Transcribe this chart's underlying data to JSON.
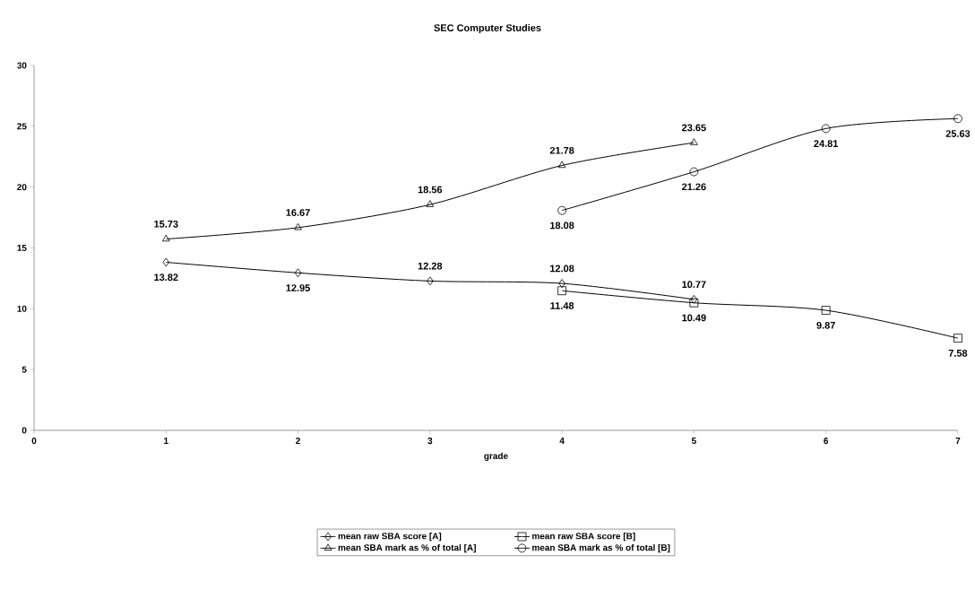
{
  "chart_data": {
    "type": "line",
    "title": "SEC Computer Studies",
    "xlabel": "grade",
    "xlim": [
      0,
      7
    ],
    "xticks": [
      0,
      1,
      2,
      3,
      4,
      5,
      6,
      7
    ],
    "ylim": [
      0,
      30
    ],
    "yticks": [
      0,
      5,
      10,
      15,
      20,
      25,
      30
    ],
    "grid": false,
    "legend": "bottom",
    "data_labels": true,
    "line_style": "solid",
    "series": [
      {
        "name": "mean raw SBA score [A]",
        "color": "#000000",
        "marker": "diamond",
        "x": [
          1,
          2,
          3,
          4,
          5
        ],
        "values": [
          13.82,
          12.95,
          12.28,
          12.08,
          10.77
        ]
      },
      {
        "name": "mean raw SBA score [B]",
        "color": "#000000",
        "marker": "square",
        "x": [
          4,
          5,
          6,
          7
        ],
        "values": [
          11.48,
          10.49,
          9.87,
          7.58
        ]
      },
      {
        "name": "mean SBA mark as % of total [A]",
        "color": "#000000",
        "marker": "triangle",
        "x": [
          1,
          2,
          3,
          4,
          5
        ],
        "values": [
          15.73,
          16.67,
          18.56,
          21.78,
          23.65
        ]
      },
      {
        "name": "mean SBA mark as % of total [B]",
        "color": "#000000",
        "marker": "circle",
        "x": [
          4,
          5,
          6,
          7
        ],
        "values": [
          18.08,
          21.26,
          24.81,
          25.63
        ]
      }
    ]
  }
}
